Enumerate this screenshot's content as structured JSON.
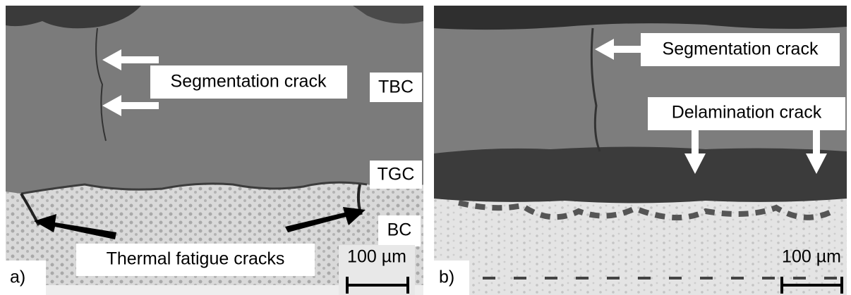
{
  "panels": [
    {
      "tag": "a)",
      "labels": [
        "Segmentation crack",
        "TBC",
        "TGC",
        "BC",
        "Thermal fatigue cracks"
      ],
      "scale_bar": "100 µm"
    },
    {
      "tag": "b)",
      "labels": [
        "Segmentation crack",
        "Delamination crack"
      ],
      "scale_bar": "100 µm"
    }
  ]
}
